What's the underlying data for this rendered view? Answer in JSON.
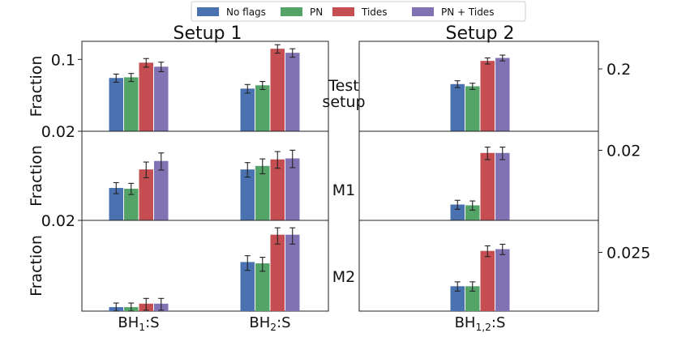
{
  "chart_data": {
    "type": "bar",
    "legend": {
      "placement": "top-center",
      "entries": [
        {
          "name": "No flags",
          "color": "#4a71b0"
        },
        {
          "name": "PN",
          "color": "#55a467"
        },
        {
          "name": "Tides",
          "color": "#c44e52"
        },
        {
          "name": "PN + Tides",
          "color": "#8172b3"
        }
      ]
    },
    "column_titles": [
      "Setup 1",
      "Setup 2"
    ],
    "row_labels": [
      "Test\nsetup",
      "M1",
      "M2"
    ],
    "left_ylabel": "Fraction",
    "left_categories": [
      "BH_1:S",
      "BH_2:S"
    ],
    "right_categories": [
      "BH_1,2:S"
    ],
    "yscale": "log",
    "left_rows": [
      {
        "ylim": [
          0.02,
          0.15
        ],
        "ytick_labels": [
          {
            "value": 0.1,
            "label": "0.1"
          },
          {
            "value": 0.02,
            "label": "0.02"
          }
        ],
        "series": [
          {
            "name": "No flags",
            "values": [
              0.066,
              0.052
            ],
            "err": [
              0.006,
              0.005
            ]
          },
          {
            "name": "PN",
            "values": [
              0.067,
              0.056
            ],
            "err": [
              0.006,
              0.005
            ]
          },
          {
            "name": "Tides",
            "values": [
              0.093,
              0.127
            ],
            "err": [
              0.009,
              0.012
            ]
          },
          {
            "name": "PN + Tides",
            "values": [
              0.085,
              0.116
            ],
            "err": [
              0.009,
              0.011
            ]
          }
        ]
      },
      {
        "ylim": [
          0.0055,
          0.02
        ],
        "ytick_labels": [],
        "series": [
          {
            "name": "No flags",
            "values": [
              0.0088,
              0.0115
            ],
            "err": [
              0.0007,
              0.0012
            ]
          },
          {
            "name": "PN",
            "values": [
              0.0087,
              0.0121
            ],
            "err": [
              0.0007,
              0.0013
            ]
          },
          {
            "name": "Tides",
            "values": [
              0.0115,
              0.0133
            ],
            "err": [
              0.0013,
              0.0016
            ]
          },
          {
            "name": "PN + Tides",
            "values": [
              0.013,
              0.0135
            ],
            "err": [
              0.0016,
              0.0017
            ]
          }
        ]
      },
      {
        "ylim": [
          0.0006,
          0.02
        ],
        "ytick_labels": [
          {
            "value": 0.02,
            "label": "0.02"
          }
        ],
        "series": [
          {
            "name": "No flags",
            "values": [
              0.0007,
              0.004
            ],
            "err": [
              0.00012,
              0.0011
            ]
          },
          {
            "name": "PN",
            "values": [
              0.0007,
              0.0038
            ],
            "err": [
              0.00012,
              0.001
            ]
          },
          {
            "name": "Tides",
            "values": [
              0.0008,
              0.0115
            ],
            "err": [
              0.00018,
              0.0035
            ]
          },
          {
            "name": "PN + Tides",
            "values": [
              0.0008,
              0.0115
            ],
            "err": [
              0.00018,
              0.0035
            ]
          }
        ]
      }
    ],
    "right_rows": [
      {
        "ylim": [
          0.08,
          0.3
        ],
        "ytick_labels": [
          {
            "value": 0.2,
            "label": "0.2"
          }
        ],
        "series": [
          {
            "name": "No flags",
            "values": [
              0.16
            ],
            "err": [
              0.008
            ]
          },
          {
            "name": "PN",
            "values": [
              0.155
            ],
            "err": [
              0.007
            ]
          },
          {
            "name": "Tides",
            "values": [
              0.225
            ],
            "err": [
              0.01
            ]
          },
          {
            "name": "PN + Tides",
            "values": [
              0.235
            ],
            "err": [
              0.01
            ]
          }
        ]
      },
      {
        "ylim": [
          0.0045,
          0.03
        ],
        "ytick_labels": [
          {
            "value": 0.02,
            "label": "0.02"
          }
        ],
        "series": [
          {
            "name": "No flags",
            "values": [
              0.0063
            ],
            "err": [
              0.0006
            ]
          },
          {
            "name": "PN",
            "values": [
              0.0062
            ],
            "err": [
              0.0006
            ]
          },
          {
            "name": "Tides",
            "values": [
              0.0189
            ],
            "err": [
              0.0025
            ]
          },
          {
            "name": "PN + Tides",
            "values": [
              0.0189
            ],
            "err": [
              0.0025
            ]
          }
        ]
      },
      {
        "ylim": [
          0.007,
          0.05
        ],
        "ytick_labels": [
          {
            "value": 0.025,
            "label": "0.025"
          }
        ],
        "series": [
          {
            "name": "No flags",
            "values": [
              0.012
            ],
            "err": [
              0.0012
            ]
          },
          {
            "name": "PN",
            "values": [
              0.012
            ],
            "err": [
              0.0012
            ]
          },
          {
            "name": "Tides",
            "values": [
              0.0258
            ],
            "err": [
              0.003
            ]
          },
          {
            "name": "PN + Tides",
            "values": [
              0.0268
            ],
            "err": [
              0.003
            ]
          }
        ]
      }
    ]
  }
}
